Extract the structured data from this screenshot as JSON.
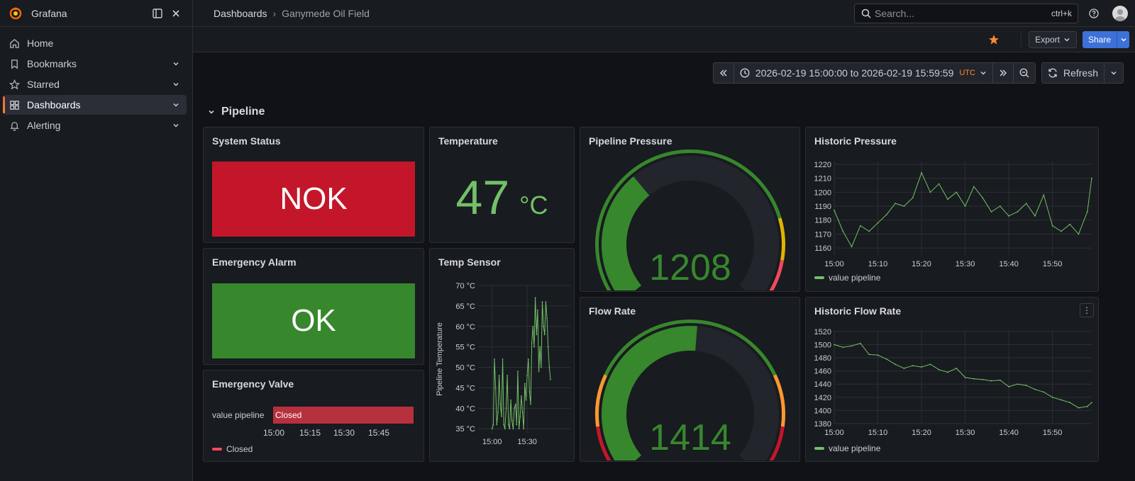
{
  "sidebar": {
    "app_name": "Grafana",
    "items": [
      {
        "label": "Home",
        "icon": "home-icon"
      },
      {
        "label": "Bookmarks",
        "icon": "bookmark-icon"
      },
      {
        "label": "Starred",
        "icon": "star-icon"
      },
      {
        "label": "Dashboards",
        "icon": "apps-icon",
        "active": true
      },
      {
        "label": "Alerting",
        "icon": "bell-icon"
      }
    ]
  },
  "topbar": {
    "breadcrumb_root": "Dashboards",
    "breadcrumb_separator": "›",
    "breadcrumb_current": "Ganymede Oil Field",
    "search_placeholder": "Search...",
    "search_shortcut": "ctrl+k"
  },
  "subbar": {
    "export_label": "Export",
    "share_label": "Share"
  },
  "time": {
    "range": "2026-02-19 15:00:00 to 2026-02-19 15:59:59",
    "timezone": "UTC",
    "refresh_label": "Refresh"
  },
  "row": {
    "title": "Pipeline"
  },
  "panels": {
    "system_status": {
      "title": "System Status",
      "value": "NOK",
      "color": "#c4162a"
    },
    "emergency_alarm": {
      "title": "Emergency Alarm",
      "value": "OK",
      "color": "#37872d"
    },
    "emergency_valve": {
      "title": "Emergency Valve",
      "row_label": "value pipeline",
      "state": "Closed",
      "legend": "Closed",
      "color": "#b7303d"
    },
    "temperature": {
      "title": "Temperature",
      "value": "47",
      "unit": "°C",
      "color": "#73bf69"
    },
    "temp_sensor": {
      "title": "Temp Sensor",
      "ylabel": "Pipeline Temperature"
    },
    "pipeline_pressure": {
      "title": "Pipeline Pressure",
      "value": "1208",
      "color": "#37872d"
    },
    "flow_rate": {
      "title": "Flow Rate",
      "value": "1414",
      "color": "#37872d"
    },
    "historic_pressure": {
      "title": "Historic Pressure",
      "legend": "value pipeline"
    },
    "historic_flow": {
      "title": "Historic Flow Rate",
      "legend": "value pipeline"
    }
  },
  "chart_data": [
    {
      "type": "line",
      "title": "Historic Pressure",
      "ylim": [
        1155,
        1222
      ],
      "yticks": [
        1160,
        1170,
        1180,
        1190,
        1200,
        1210,
        1220
      ],
      "xticks": [
        "15:00",
        "15:10",
        "15:20",
        "15:30",
        "15:40",
        "15:50"
      ],
      "series": [
        {
          "name": "value pipeline",
          "color": "#73bf69",
          "x_minutes": [
            0,
            2,
            4,
            6,
            8,
            10,
            12,
            14,
            16,
            18,
            20,
            22,
            24,
            26,
            28,
            30,
            32,
            34,
            36,
            38,
            40,
            42,
            44,
            46,
            48,
            50,
            52,
            54,
            56,
            58,
            59
          ],
          "values": [
            1187,
            1172,
            1161,
            1176,
            1172,
            1178,
            1184,
            1192,
            1190,
            1196,
            1214,
            1200,
            1206,
            1195,
            1200,
            1190,
            1204,
            1196,
            1186,
            1190,
            1183,
            1186,
            1192,
            1183,
            1198,
            1176,
            1172,
            1177,
            1170,
            1186,
            1210
          ]
        }
      ],
      "grid": true,
      "legend_position": "bottom-left"
    },
    {
      "type": "line",
      "title": "Historic Flow Rate",
      "ylim": [
        1380,
        1522
      ],
      "yticks": [
        1380,
        1400,
        1420,
        1440,
        1460,
        1480,
        1500,
        1520
      ],
      "xticks": [
        "15:00",
        "15:10",
        "15:20",
        "15:30",
        "15:40",
        "15:50"
      ],
      "series": [
        {
          "name": "value pipeline",
          "color": "#73bf69",
          "x_minutes": [
            0,
            2,
            4,
            6,
            8,
            10,
            12,
            14,
            16,
            18,
            20,
            22,
            24,
            26,
            28,
            30,
            32,
            34,
            36,
            38,
            40,
            42,
            44,
            46,
            48,
            50,
            52,
            54,
            56,
            58,
            59
          ],
          "values": [
            1500,
            1496,
            1498,
            1502,
            1485,
            1484,
            1478,
            1470,
            1464,
            1468,
            1466,
            1470,
            1462,
            1458,
            1464,
            1450,
            1448,
            1447,
            1445,
            1446,
            1436,
            1440,
            1438,
            1432,
            1428,
            1420,
            1416,
            1412,
            1404,
            1406,
            1412
          ]
        }
      ],
      "grid": true,
      "legend_position": "bottom-left"
    },
    {
      "type": "line",
      "title": "Temp Sensor",
      "ylabel": "Pipeline Temperature",
      "ylim": [
        34,
        70
      ],
      "yticks": [
        "35 °C",
        "40 °C",
        "45 °C",
        "50 °C",
        "55 °C",
        "60 °C",
        "65 °C",
        "70 °C"
      ],
      "ytick_values": [
        35,
        40,
        45,
        50,
        55,
        60,
        65,
        70
      ],
      "xticks": [
        "15:00",
        "15:30"
      ],
      "xlim_minutes": [
        -12,
        67
      ],
      "series": [
        {
          "name": "",
          "color": "#73bf69",
          "x_minutes": [
            0,
            1,
            2,
            3,
            4,
            5,
            6,
            7,
            8,
            9,
            10,
            11,
            12,
            13,
            14,
            15,
            16,
            17,
            18,
            19,
            20,
            21,
            22,
            23,
            24,
            25,
            26,
            27,
            28,
            29,
            30,
            31,
            32,
            33,
            34,
            35,
            36,
            37,
            38,
            39,
            40,
            41,
            42,
            43,
            44,
            45,
            46,
            47,
            48,
            49,
            50
          ],
          "values": [
            35,
            36,
            52,
            45,
            36,
            39,
            48,
            41,
            38,
            52,
            36,
            35,
            40,
            48,
            36,
            35,
            42,
            37,
            35,
            40,
            41,
            36,
            49,
            35,
            38,
            43,
            39,
            35,
            46,
            42,
            48,
            52,
            44,
            41,
            56,
            60,
            55,
            67,
            58,
            64,
            49,
            55,
            50,
            66,
            60,
            58,
            66,
            62,
            55,
            50,
            47
          ]
        }
      ],
      "grid": true
    },
    {
      "type": "gauge",
      "title": "Pipeline Pressure",
      "value": 1208,
      "range": [
        1000,
        1600
      ],
      "thresholds": [
        {
          "color": "#37872d",
          "from": 1000
        },
        {
          "color": "#e0b400",
          "from": 1470
        },
        {
          "color": "#f2495c",
          "from": 1530
        }
      ]
    },
    {
      "type": "gauge",
      "title": "Flow Rate",
      "value": 1414,
      "range": [
        1000,
        1800
      ],
      "thresholds": [
        {
          "color": "#c4162a",
          "from": 1000
        },
        {
          "color": "#ff9830",
          "from": 1100
        },
        {
          "color": "#37872d",
          "from": 1200
        },
        {
          "color": "#ff9830",
          "from": 1600
        },
        {
          "color": "#c4162a",
          "from": 1700
        }
      ]
    },
    {
      "type": "state-timeline",
      "title": "Emergency Valve",
      "rows": [
        "value pipeline"
      ],
      "states": [
        {
          "label": "Closed",
          "from": "15:00",
          "to": "15:59"
        }
      ],
      "xticks": [
        "15:00",
        "15:15",
        "15:30",
        "15:45"
      ]
    }
  ]
}
